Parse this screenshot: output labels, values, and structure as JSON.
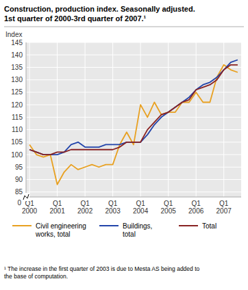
{
  "chart_data": {
    "type": "line",
    "title": "Construction, production index. Seasonally adjusted.",
    "subtitle": "1st quarter of 2000-3rd quarter of 2007.¹",
    "y_label": "Index",
    "annotations": [
      "0",
      "¹ The increase in the first quarter of 2003 is due to Mesta AS being added to\nthe base of computation."
    ],
    "categories": [
      "Q1\n2000",
      null,
      null,
      null,
      "Q1\n2001",
      null,
      null,
      null,
      "Q1\n2002",
      null,
      null,
      null,
      "Q1\n2003",
      null,
      null,
      null,
      "Q1\n2004",
      null,
      null,
      null,
      "Q1\n2005",
      null,
      null,
      null,
      "Q1\n2006",
      null,
      null,
      null,
      "Q1\n2007",
      null,
      null
    ],
    "series": [
      {
        "name": "Civil engineering\nworks, total",
        "color": "#e8a020",
        "values": [
          104,
          100,
          99,
          100,
          88,
          93,
          96,
          94,
          95,
          96,
          95,
          96,
          96,
          104,
          109,
          104,
          120,
          115,
          121,
          116,
          117,
          117,
          121,
          121,
          125,
          121,
          121,
          131,
          136,
          134,
          133
        ]
      },
      {
        "name": "Buildings,\ntotal",
        "color": "#2244aa",
        "values": [
          102,
          101,
          100,
          100,
          100,
          101,
          104,
          105,
          103,
          103,
          103,
          104,
          104,
          104,
          105,
          105,
          105,
          108,
          112,
          115,
          117,
          119,
          121,
          123,
          126,
          128,
          129,
          131,
          134,
          137,
          138
        ]
      },
      {
        "name": "Total",
        "color": "#882222",
        "values": [
          102,
          101,
          100,
          100,
          101,
          101,
          102,
          102,
          102,
          102,
          102,
          102,
          102,
          103,
          105,
          105,
          105,
          110,
          113,
          116,
          117,
          119,
          121,
          122,
          126,
          127,
          128,
          130,
          134,
          136,
          136
        ]
      }
    ],
    "ylim": [
      83,
      145
    ],
    "yticks": [
      85,
      90,
      95,
      100,
      105,
      110,
      115,
      120,
      125,
      130,
      135,
      140,
      145
    ],
    "grid": true,
    "legend": "bottom"
  }
}
